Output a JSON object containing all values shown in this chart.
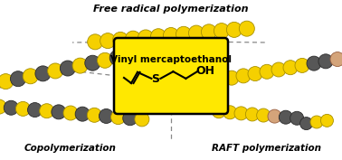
{
  "title": "Free radical polymerization",
  "label_copolymer": "Copolymerization",
  "label_raft": "RAFT polymerization",
  "center_label": "Vinyl mercaptoethanol",
  "bg_color": "#ffffff",
  "box_color": "#FFE800",
  "box_edge_color": "#000000",
  "yellow_color": "#F5D000",
  "gray_color": "#575757",
  "peach_color": "#D4A47A",
  "figsize": [
    3.78,
    1.77
  ],
  "dpi": 100
}
